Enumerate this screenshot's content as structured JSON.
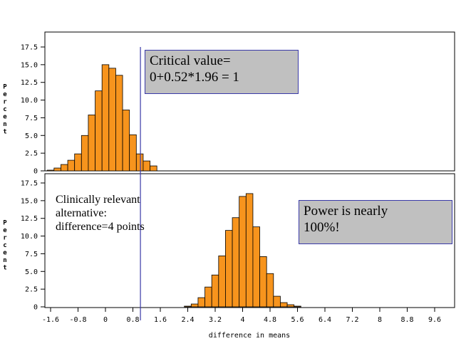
{
  "chart_data": [
    {
      "type": "bar",
      "panel": "top",
      "ylabel": "Percent",
      "ylim": [
        0,
        17.5
      ],
      "yticks": [
        "0",
        "2.5",
        "5.0",
        "7.5",
        "10.0",
        "12.5",
        "15.0",
        "17.5"
      ],
      "bin_width": 0.2,
      "bin_centers": [
        -1.6,
        -1.4,
        -1.2,
        -1.0,
        -0.8,
        -0.6,
        -0.4,
        -0.2,
        0.0,
        0.2,
        0.4,
        0.6,
        0.8,
        1.0,
        1.2,
        1.4
      ],
      "values": [
        0.1,
        0.4,
        0.9,
        1.5,
        2.4,
        5.0,
        7.9,
        11.3,
        15.0,
        14.5,
        13.5,
        8.6,
        5.1,
        2.4,
        1.4,
        0.7
      ],
      "bar_color": "#f7941d",
      "critical_value": 1.02
    },
    {
      "type": "bar",
      "panel": "bottom",
      "ylabel": "Percent",
      "ylim": [
        0,
        17.5
      ],
      "yticks": [
        "0",
        "2.5",
        "5.0",
        "7.5",
        "10.0",
        "12.5",
        "15.0",
        "17.5"
      ],
      "xlabel": "difference in means",
      "xticks": [
        "-1.6",
        "-0.8",
        "0",
        "0.8",
        "1.6",
        "2.4",
        "3.2",
        "4",
        "4.8",
        "5.6",
        "6.4",
        "7.2",
        "8",
        "8.8",
        "9.6"
      ],
      "bin_width": 0.2,
      "bin_centers": [
        2.4,
        2.6,
        2.8,
        3.0,
        3.2,
        3.4,
        3.6,
        3.8,
        4.0,
        4.2,
        4.4,
        4.6,
        4.8,
        5.0,
        5.2,
        5.4,
        5.6
      ],
      "values": [
        0.1,
        0.4,
        1.3,
        2.8,
        4.5,
        7.2,
        10.8,
        12.6,
        15.6,
        16.0,
        11.3,
        7.1,
        4.7,
        1.5,
        0.6,
        0.3,
        0.1
      ],
      "bar_color": "#f7941d",
      "critical_value": 1.02
    }
  ],
  "annotations": {
    "critical_line1": "Critical value=",
    "critical_line2": "0+0.52*1.96 = 1",
    "clinical_line1": "Clinically relevant",
    "clinical_line2": "alternative:",
    "clinical_line3": "difference=4 points",
    "power_line1": "Power is nearly",
    "power_line2": "100%!"
  },
  "colors": {
    "bar_fill": "#f7941d",
    "bar_stroke": "#000000",
    "critical_line": "#3a3aa8",
    "box_fill": "#c0c0c0"
  }
}
